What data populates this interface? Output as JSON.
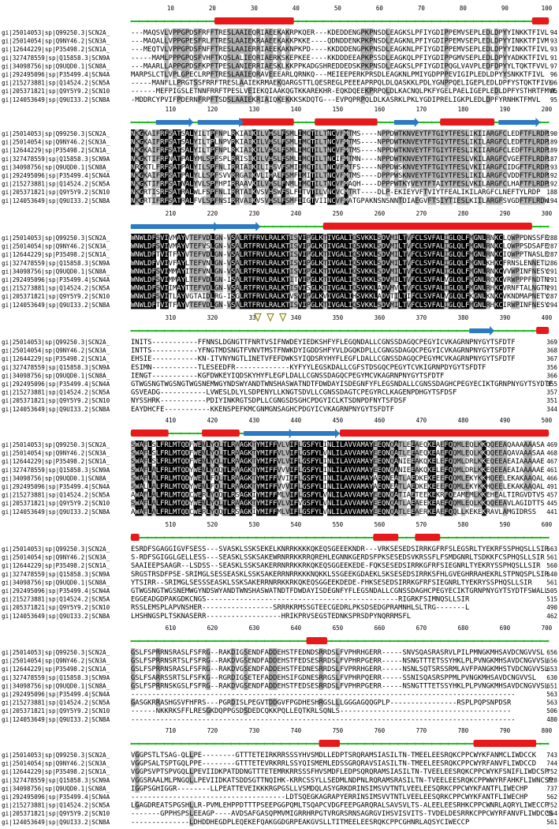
{
  "colors": {
    "identical_bg": "#000000",
    "identical_fg": "#ffffff",
    "similar_bg": "#b3b3b3",
    "helix": "#e8191b",
    "strand": "#2a7bc4",
    "ruler": "#22bb22",
    "marker_stroke": "#7a7a10",
    "marker_fill": "#fffbe0"
  },
  "sequence_names": [
    "gi|25014053|sp|Q99250.3|SCN2A_",
    "gi|25014054|sp|Q9NY46.2|SCN3A_",
    "gi|12644229|sp|P35498.2|SCN1A_",
    "gi|327478559|sp|Q15858.3|SCN9A",
    "gi|34098756|sp|Q9UQD0.1|SCN8A_",
    "gi|292495096|sp|P35499.4|SCN4A",
    "gi|215273881|sp|Q14524.2|SCN5A",
    "gi|205371821|sp|Q9Y5Y9.2|SCN10",
    "gi|124053649|sp|Q9UI33.2|SCN8A"
  ],
  "blocks": [
    {
      "ticks": [
        "10",
        "20",
        "30",
        "40",
        "50",
        "60",
        "70",
        "80",
        "90",
        "100"
      ],
      "sequences": [
        "---MAQSVLVPPGPDSFRFFTRESLAAIEQRIAEEKAKRPKQER---KDEDDENGPKPNSDLEAGKSLPFIYGDIPPEMVSEPLEDLDPYYINKKTFIVL",
        "---MAQALLVPPGPESFRLFTRESLAAIEKRAAEEKAKKPKKE----QDNDDENKPKPNSDLEAGKNLPFIYGDIPPEMVSEPLEDLDPYYINKKTFIVM",
        "---MEQTVLVPPGPDSFNFFTRESLAAIERRIAEEKAKNPKPD----KKDDDENGPKPNSDLEAGKNLPFIYGDIPPEMVSEPLEDLDPYYINKKTFIVL",
        "-----MAMLPPPGPQSFVHFTKQSLALIEQRIAERKSKEPKEE----KKDDDEEAPKPSSDLEAGKQLPFIYGDIPPGMVSEPLEDLDPYYADKKTFIVL",
        "---MAARLLAPPGPDSFKPFTPESLANIERRIAESKLKKPPKADGSHREDDEDSKPKPNSDLEAGKSLPFIYGDIPQGLVAVPLEDFDPYYLTQKTFVVL",
        "MARPSLCTLVPLGPECLRPFTRESLAAIEQRAVEEEARLQRNKQ---MEIEEPERKPRSDLEAGKNLPMIYGDPPPEVIGIPLEDLDPYYSNKKTFIVL",
        "-----MANFLLPRGTSSFRRFTRESLAAIEKRMAEKQARGSTTLQESREGLPEEEAPRPQLDLQASKKLPDLYGNPPQELIGEPLEDLDPFYSTQKTFIVL",
        "------MEFPIGSLETNNFRRFTPESLVEIEKQIAAKQGTKKAREKHR-EQKDQEEKPRPQLDLKACNQLPKFYGELPAELIGEPLEDLDPFYSTHRTFMVL",
        "-MDDRCYPVIFPDERNFRPFTSDSLAAIEKRIAIQKEKKKSKDQTG---EVPQPRPQLDLKASRKLPKLYGDIPRELIGKPLEDLDPFYRNHKTFMVL"
      ],
      "end_numbers": [
        "94",
        "93",
        "93",
        "91",
        "97",
        "96",
        "96",
        "95",
        "95"
      ]
    },
    {
      "ticks": [
        "110",
        "120",
        "130",
        "140",
        "150",
        "160",
        "170",
        "180",
        "190",
        "200"
      ],
      "sequences": [
        "NKGKAIFRFSATSALYILTPFNPLRKIAIKILVHSLFSMLIMCTILTNCVFMTMS----NPPDWTKNVEYTFTGIYTFESLIKIIARGFCLEDFTFLRDP",
        "NKGKAIFRFSATSALYILTPLNPVRKIAIKILVHSLFSMLIMCTILTNCVFMTMS----NPPDWTKNVEYTFTGIYTFESLIKILARGFCLEDFTFLRDP",
        "NKGKAIFRFSATSALYILTPFNPLRKIAIKILVHSLFSMLIMCTILTNCVFMTMS----NPPDWTKNVEYTFTGIYTFESLIKIIARGFCLEDFTFLRDP",
        "NKGKTIFRFNATPALYMLSPFSPLRRISIKILVHSLFSMLIMCTILTNCIFMTMN----NPPDWTKNVEYTFTGIYTFESLVKILARGFCVGEFTFLRDP",
        "NRGKTLFRFSATPALYILSPFNLIRRIAIKILIHSVFSMIIMCTILTNCVFMTFS----NPPDWSKNVEYTFTGIYTFESLVKIIARGFCIDGFTFLRDP",
        "NKGKAIFRFSATPALYLLSPFSVVRRGAIKVLIHALFSMFIMITILTNCVFMTMS----DPPPWSKNVEYTFTGIYTFESLIKILARGFCVDDFTFLRDP",
        "NKGKTIFRFSATNALYVLSPFHPIRRAAVKILVHSLFNMLIMCTILTNCVFMAQH----DPPPWTKYVEYTFTAIYTFESLVKILARGFCLHAFTFLRDP",
        "NKGRTISRFSATRALWLFSPFNLIRRTAIKVSVHSWFSLFITVTILVNCVCMTRT----DLP-EKIEYVFTVIYTFEALIKILARGFCLNEFTYLRDP",
        "NKGRTIFRFSATRALFVLSPFNSIRRVAIKVSVHSLFSMFIIGTVIINCVFMATGPAKNSNSNNTDIAEGVFTSIYTIESLKIILARGFSVGDFTFLRDW"
      ],
      "end_numbers": [
        "190",
        "189",
        "189",
        "187",
        "193",
        "192",
        "192",
        "188",
        "194"
      ]
    },
    {
      "ticks": [
        "210",
        "220",
        "230",
        "240",
        "250",
        "260",
        "270",
        "280",
        "290",
        "300"
      ],
      "sequences": [
        "WNWLDFSVIVMAYVTEFVDLGN-VSALRTFRVLRALKTISVIPGLKTIVGALIQSVKKLSDVMILTVFCLSVFALIGLQLFMGNLRNKCLQWPPDNSSFE",
        "WNWLDFSVIVMAYVTEFVSLGN-VSALRTFRVLRALKTISVIPGLKTIVGALIQSVKKLSDVMILTVFCLSVFALIGLQLFMGNLRNKCLQWPPSDSAFE",
        "WNWLDFTVITFAYVTEFVDLGN-VSALRTFRVLRALKTISVIPGLKTIVGALIQSVKKLSDVMILTVFCLSVFALIGLQLFMGNLRNKCIQWPPTNASLE",
        "WNWLDFVVIVFAYLTEFVNLGN-VSALRTFRVLRALKTISVIPGLKTIVGALIQSVKKLSDVMILTVFCLSVFALIGLQLFMGNLKHKCFRNSLENNETL",
        "WNWLDFSVIMMAYITEFVNLGN-VSALRTFRVLRALKTISVIPGLKTIVGALIQSVKKLSDVMILTVFCLSVFALIGLQLFMGNLRNKCVVWPINFNESY",
        "WNWLDFSVIMMAYLTEFVDLGN-ISALRTFRVLRALKTITVIPGLKTIVGALIQSVKKLSDVMILTVFCLSVFALVGLQLFMGNLRQKCVRWPPPFNDTN",
        "WNWLDFSVIIMAYTTEFVDLGN-VSALRTFRVLRALKTISVISGLKTIVGALIQSVKKLADVMVLTVFCLSVFALIGLQLFMGNLRHKCVRNFTALNGTN",
        "WNWLDFSVITLAYVGTAIDLRG-ISGLRTFRVLRALKTVSVIPGLKVIVGALIHSVKKLADVTILTIFCLSVFALVGLQLFKGNLKNKCVKNDMAPNETY",
        "WNWLDFTVITFAYVTEFVDLGN-VSALRTFRVLRALKTISVIPGLKTIVGALIQSVKKLSDVMILTVFCLSVFALIGLQLFMGNLRHKCIRWPINFNESY"
      ],
      "end_numbers": [
        "288",
        "287",
        "287",
        "286",
        "291",
        "291",
        "291",
        "287",
        "294"
      ]
    },
    {
      "ticks": [
        "310",
        "320",
        "330",
        "340",
        "350",
        "360",
        "370",
        "380",
        "390",
        "400"
      ],
      "sequences": [
        "INITS-----------FFNNSLDGNGTTFNRTVSIFNWDEYIEDKSHFYFLEGQNDALLCGNSSDAGQCPEGYICVKAGRNPNYGYTSFDTF",
        "INTTS-----------YFNGTMDSNGTFVNVTMSTFNWKDYIGDDSHFYVLDGQKDPLLCGNGSDAGQCPEGYICVKAGRNPNYGYTSFDTF",
        "EHSIE-----------KN-ITVNYNGTLINETVFEFDWKSYIQDSRYHYFLEGFLDALLCGNSSDAGQCPEGYMCVKAGRNPNYGYTSFDTF",
        "ESIMN-----------TLESEEDFR-------------KYFYYLEGSKDALLCGFSTDSGQCPEGYTCVKIGRNPDYGYTSFDTF",
        "IENGT-----------KGFDWKEYIQDSKYHYFLEGFLDALLCGNSSDAGQCPEGYMCVKAGRNPNYGYTSFDTF",
        "GTWGSNGTWGSNGTWGSNEMWGYNDSWYANDTWNSHASWATNDTFDWDAYISDEGNFYFLEGSNDALLCGNSSDAGHCPEGYECIKTGRNPNYGYTSYDTF",
        "GSVEADG-----------LVWESLDLYLSDPENYLLKNGTSDVLLCGNSSDAGTCPEGYRCLKAGENPDHGYTSFDSF",
        "NYSSHRK-----------PDIYINKRGTSDPLLCGNGSDSGHCPDGYICLKTSDNPDFNYTSFDSF",
        "EAYDHCFE-----------KKENSPEFKMCGNMGNSAGHCPDGYICVKAGRNPNYGYTSFDTF"
      ],
      "end_numbers": [
        "369",
        "368",
        "367",
        "356",
        "366",
        "355",
        "357",
        "351",
        "344"
      ]
    },
    {
      "ticks": [
        "410",
        "420",
        "430",
        "440",
        "450",
        "460",
        "470",
        "480",
        "490",
        "500"
      ],
      "sequences": [
        "SWAFLSLFRLMTQDFWENLYQLTLRAAGKTYMIFFVLVIFLGSFYLINLILAVVAMAYEEQNQATLEEAEQKEAEFQQMLEQLKKQQEEAQAAAAAASA",
        "SWAFLSLFRLMTQDFWENLYQLTLRAAGKTYMIFFVLVIFLGSFYLVNLILAVVAMAYEEQNQATLEEAEQKEAEFQQMLEQLKKQQEEAQAVAAASAA",
        "SWAFLSLFRLMTQDFWENLYQLTLRAAGKTYMIFFVLVIFLGSFYLINLILAVVAMAYEEQNQANIEEAKQKELEFQQMLDRLKKEQEEAEAIAAAAAE",
        "SWAFLALFRLMTQDYWENLYQQTLRAAGKTYMIFFVVVIFLGSFYLINLILAVVAMAYEEQNQANIEEAKQKELEFQQMLDRLKKEQEEAEAIAAAAAE",
        "SWAFLALFRLMTQDYWENLFQLTLRAAGKTYMIFFVVIIFLGSFYLINLILAVVAMAYAEQNEATLAEDKEKEEEFQQMLEKYKKHQEELEKAKAAQAL",
        "SWALLALFRLMTQDYWENLFQLTLRAAGKTYMIFFVVVIFLGSFYLINLILAVVAMAYAEQNEATLAEDKEKEEEFQQMLEKYKKHQEELEKAKAAQAL",
        "AWAFLALFRLMTQDCWERLYQQTLRSAGKIYMIFFMLVIFLGSFYLVNLILAVVAMAYEEQNQATIAETEEKEKRFQEAMEMLKKEHEALTIRGVDTVS",
        "SWAFLALFRLMTQDYWENLYQLTLRAAGKTYMIFFVLVIFVGSFYLVNLILAVVAMAYEEQNQATLAEAEEKEAEFQQMLEQLKKQQEEAVLAGIDTTS",
        "AWAFLALFRLMTQDCWERLYQQTLRSAGKIYMIFFMLVIFLGSFYLVNLILAVVAMAYEEQNQATLEEAERKEAEFQQLLKEKEKRAVLAMGIDRSS"
      ],
      "end_numbers": [
        "469",
        "468",
        "467",
        "461",
        "466",
        "491",
        "457",
        "445",
        "441"
      ]
    },
    {
      "ticks": [
        "510",
        "520",
        "530",
        "540",
        "550",
        "560",
        "570",
        "580",
        "590",
        "600"
      ],
      "sequences": [
        "ESRDFSGAGGIGVFSESS---SVASKLSSKSEKELKNRRKKKKQKEQSGEEEKNDR---VRKSESEDSIRRKGFRFSLEGSRLTYEKRFSSPHQSLLSIR",
        "S-RDFSGIGGLGELLESS---SEASKLSSKSAKEWRNRRKKRRQREHLEGNNKGERDSFPKSESEDSVKRSSFLFSMDGNRLTSDKKFCSPHQSLLSIR",
        "SAAIEEPSAAGR--LSDSS--SEASKLSSKSAKERRNRRKKRKQKEQSGGEEKEDE-FQKSESEDSIRRKGFRFSIEGNRLTYEKRYSSPHQSLLSIR",
        "SRGSTRSDFPSE-SRIMGLSESSEASKLSSKSAKERRNRRKKKNQKKLSSGEEKGDAEKLSKSESEDSIRRKSFHLGVEGHRRAHEKRLSTPNQSPLSIR",
        "YTSIRR--SRIMGLSESSSEASKLSSKSAKERRNRRKKRKQKEQSGGEEKDEDE-FHKSESEDSIRRKGFRFSIEGNRLTYEKRYSSPHQSLLSIR",
        "GTWGSNGTWGSNEMWGYNDSWYANDTWNSHASWATNDTFDWDAYISDEGNFYFLEGSNDALLCGNSSDAGHCPEGYECIKTGRNPNYGYTSYDTFSWALL",
        "EGGEADGDPAKGDKCNGS----------------------------------------------RIGRKFSIMNQSLLSIR",
        "RSSLEMSPLAPVNSHER-----------------SRRRKRMSSGTEECGEDRLPKSDSEDGPRAMNHLSLTRG-------L",
        "LHSHNGSPLTSKNASERR------------------HRIKPRVSEGSTEDNKSPRSDPYNQRRMSFL"
      ],
      "end_numbers": [
        "563",
        "561",
        "560",
        "540",
        "561",
        "505",
        "515",
        "490",
        "462"
      ]
    },
    {
      "ticks": [
        "610",
        "620",
        "630",
        "640",
        "650",
        "660",
        "670",
        "680",
        "690",
        "700"
      ],
      "sequences": [
        "GSLFSPRRNSRASLFSFRG--RAKDIGSENDFADDEHSTFEDNDSRRDSLFVPHRHGERR-----SNVSQASRASRVLPILPMNGKMHSAVDCNGVVSL",
        "GSLFSPRRNSRTSLFSFRG--RAKDVGSENDFADDEHSTFEDSESRRDSLFVPHRPGERR-----NSNGTTTETSSYHKLPLPVNGKMHSAVDCNGVVSL",
        "GSLFSPRRNSRASLFSFRG--RAKDVGSENDFADDEHSTFEDNESRRDSLFVPRRHGERR-----NSNLSQTSRSSRMLAVFPANGKMHSTVDCNGVVSL",
        "GSLFSARRSSRTSLFSFKG--RGRDIGSETEFADDEHSIFGDNESRRGSLFVPHRPQERR-----SSNISQASRSPPMLPVNGKMHSAVDCNGVVSL",
        "GSLFSPRRNSKGSLFSFRG--RAKDVGSENDFADDEHSTFEDSESRRDSLFVPHRPGERR-----NSNGTTTETSSYHKLPLPVNGKMHSAVDCNGVVSL",
        "--------------------------------------------------------------------------------------------",
        "GASGKRRASHGSVFHFRS---PGRDISLPEGVTDDGVFPGDHESHRGSLLLGGGAGQQGPLP----------------RSPLPQPSNPDSR",
        "------NKKRKSFFLRESGKDQPPGSDSDEDCQKKPQLLEQTKRLSQNLS-----------------------------------------",
        "--------------------------------------------------------------------------------------------"
      ],
      "end_numbers": [
        "656",
        "656",
        "653",
        "630",
        "651",
        "563",
        "563",
        "506",
        "480"
      ]
    },
    {
      "ticks": [
        "710",
        "720",
        "730",
        "740",
        "750",
        "760",
        "770",
        "780",
        "790",
        "800"
      ],
      "sequences": [
        "VGGPSTLTSAG-QLLPE--------GTTTETEIRKRRSSSYHVSMDLLEDPTSRQRAMSIASILTN-TMEELEESRQKCPPCWYKFANMCLIWDCCK 743",
        "VGGPSALTSPTGQLPPE--------GTTTETEVRKRRLSSYQISMEMLEDSSGRQRAVSIASILTN-TMEELEESRQKCPPCWYRFANVFLIWDCCD 744",
        "VGGPSVPTSPVGQLLPEVIIDKPATDDNGTTTETEMRKRRSSSFHVSMDFLEDPSQRQRAMSIASILTN-TVEELEESRQKCPPCWYKFSNIFLIWDCSP 752",
        "VGGSRAALMLPNGQLLPEVIIDKATSDDSGTTNQIHK-KRRCSSYLLSEDMLNDPNLRQRAMSRASILTN-TVEELEESRQKCPPWWYRFAHKFLIWNCSP 728",
        "IGGPSGHIGGR--------LLPEATTEVEIKKKRGPGSLLVSMDQLASYGRKDRINSIMSVVTNTLVEELEESQRKCPPCWYKFANTFLIWECHP 737",
        "-------------------------------------LDTSQEGKAGRAPYERRINSIMSVVTNTLVEELEESQRKCPPCWYKFANTFLIWECHP 562",
        "LGAGDREATSPGSHLLR-PVMLEHPPDTTTPSEEPGGPQMLTSQAPCVDGFEEPGARQRALSAVSVLTS-ALEELEESRHKCPPCWNRLAQRYLIWECCP 752",
        "-------GPPHSPSLEEAGP----AVDSAFGASQPMVMIGRRHRPGTVRGRSRNSAGRGVIHSVISVITS-TVDELDESRRKCPPCWYRFANVFLIWDCCS 564",
        "--------------LDHDDHEGDPLEQEKEFQAKGGDGRPEAKGVSLLTITMEELEESRQKCPPCGHNRLAQSYCIWECCP 561"
      ],
      "end_numbers": [
        "743",
        "744",
        "752",
        "728",
        "737",
        "562",
        "752",
        "564",
        "561"
      ]
    }
  ],
  "triangle_markers": 3
}
